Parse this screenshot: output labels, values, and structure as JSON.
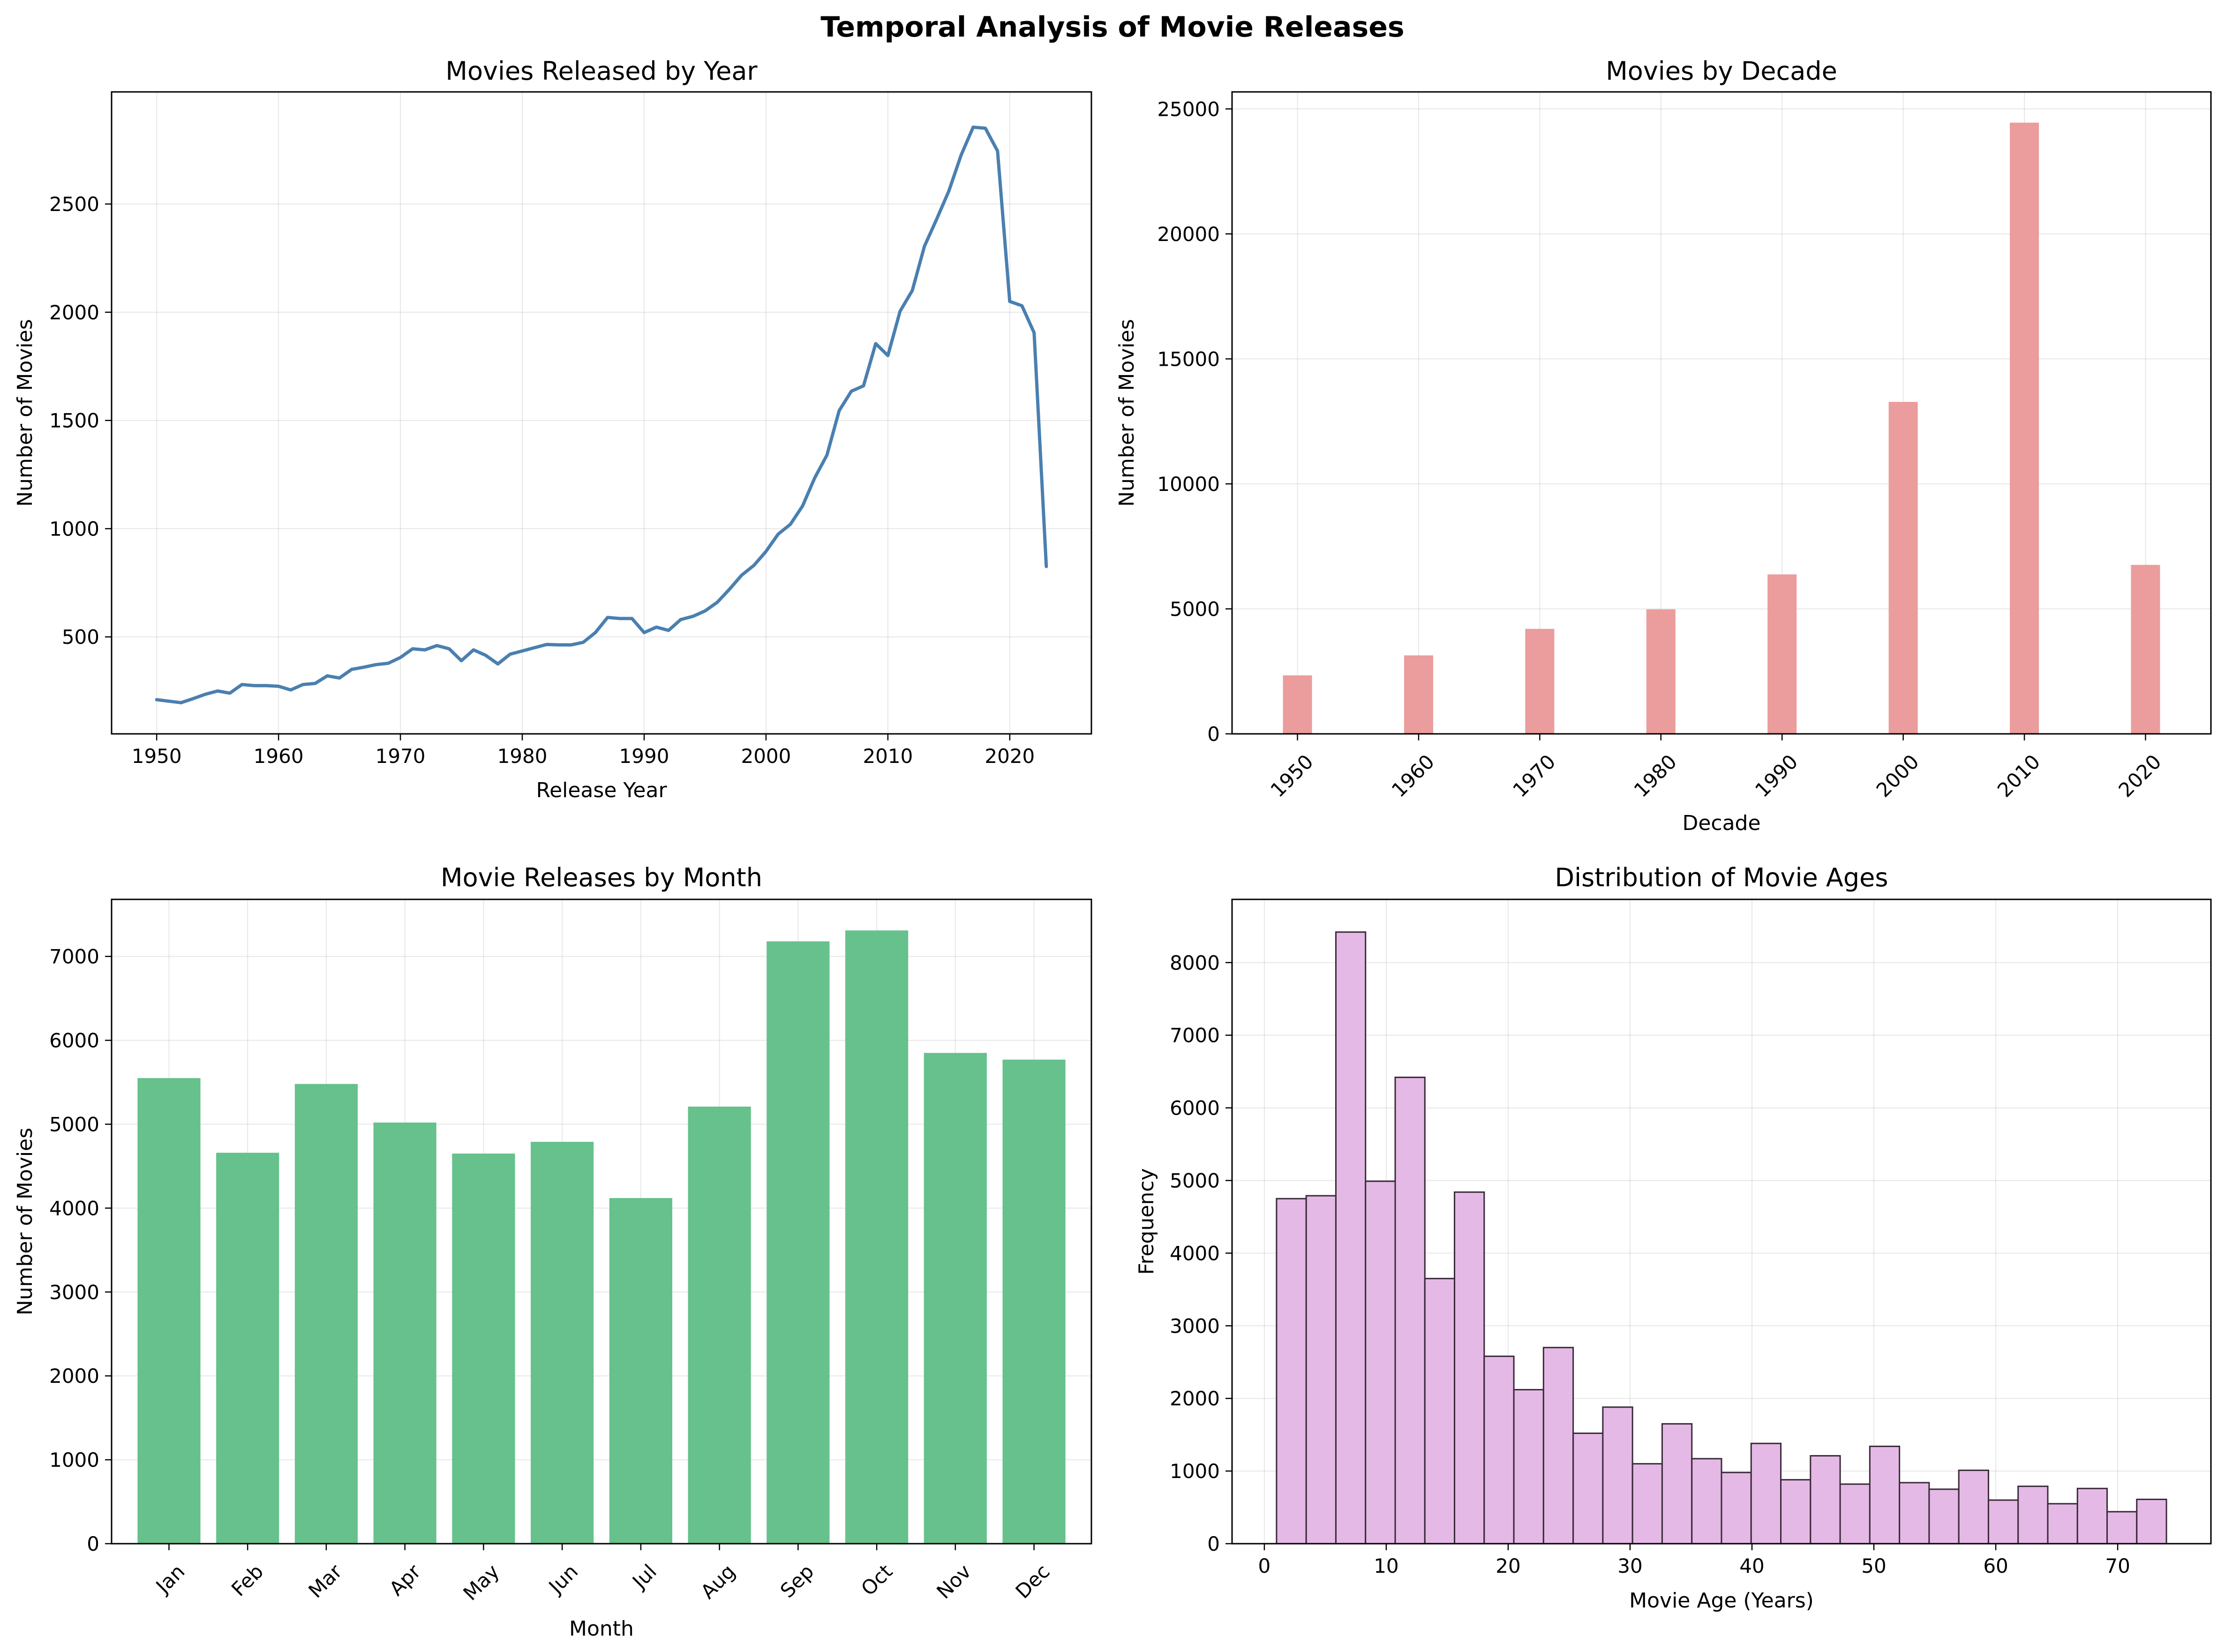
{
  "figure": {
    "title": "Temporal Analysis of Movie Releases"
  },
  "chart_data": [
    {
      "id": "by_year",
      "type": "line",
      "title": "Movies Released by Year",
      "xlabel": "Release Year",
      "ylabel": "Number of Movies",
      "xlim": [
        1946.3,
        2026.7
      ],
      "ylim": [
        52,
        3018
      ],
      "xticks": [
        1950,
        1960,
        1970,
        1980,
        1990,
        2000,
        2010,
        2020
      ],
      "yticks": [
        500,
        1000,
        1500,
        2000,
        2500
      ],
      "grid": true,
      "color": "#4a7fb0",
      "series": [
        {
          "x": [
            1950,
            1951,
            1952,
            1953,
            1954,
            1955,
            1956,
            1957,
            1958,
            1959,
            1960,
            1961,
            1962,
            1963,
            1964,
            1965,
            1966,
            1967,
            1968,
            1969,
            1970,
            1971,
            1972,
            1973,
            1974,
            1975,
            1976,
            1977,
            1978,
            1979,
            1980,
            1981,
            1982,
            1983,
            1984,
            1985,
            1986,
            1987,
            1988,
            1989,
            1990,
            1991,
            1992,
            1993,
            1994,
            1995,
            1996,
            1997,
            1998,
            1999,
            2000,
            2001,
            2002,
            2003,
            2004,
            2005,
            2006,
            2007,
            2008,
            2009,
            2010,
            2011,
            2012,
            2013,
            2014,
            2015,
            2016,
            2017,
            2018,
            2019,
            2020,
            2021,
            2022,
            2023
          ],
          "y": [
            210,
            203,
            196,
            215,
            235,
            250,
            240,
            280,
            275,
            275,
            272,
            255,
            280,
            285,
            320,
            310,
            350,
            360,
            372,
            378,
            405,
            445,
            440,
            460,
            445,
            390,
            440,
            415,
            375,
            420,
            435,
            450,
            465,
            463,
            463,
            475,
            520,
            590,
            585,
            585,
            520,
            545,
            530,
            580,
            595,
            620,
            660,
            720,
            785,
            830,
            895,
            975,
            1020,
            1105,
            1235,
            1340,
            1545,
            1635,
            1660,
            1855,
            1800,
            2005,
            2100,
            2305,
            2430,
            2560,
            2725,
            2855,
            2850,
            2745,
            2050,
            2030,
            1905,
            825
          ]
        }
      ]
    },
    {
      "id": "by_decade",
      "type": "bar",
      "title": "Movies by Decade",
      "xlabel": "Decade",
      "ylabel": "Number of Movies",
      "xlim": [
        1944.6,
        2025.4
      ],
      "ylim": [
        0,
        25680
      ],
      "categories": [
        1950,
        1960,
        1970,
        1980,
        1990,
        2000,
        2010,
        2020
      ],
      "values": [
        2340,
        3140,
        4200,
        4980,
        6380,
        13280,
        24450,
        6760
      ],
      "yticks": [
        0,
        5000,
        10000,
        15000,
        20000,
        25000
      ],
      "grid": true,
      "color": "#eb9c9c"
    },
    {
      "id": "by_month",
      "type": "bar",
      "title": "Movie Releases by Month",
      "xlabel": "Month",
      "ylabel": "Number of Movies",
      "ylim": [
        0,
        7680
      ],
      "categories": [
        "Jan",
        "Feb",
        "Mar",
        "Apr",
        "May",
        "Jun",
        "Jul",
        "Aug",
        "Sep",
        "Oct",
        "Nov",
        "Dec"
      ],
      "values": [
        5550,
        4660,
        5480,
        5020,
        4650,
        4790,
        4120,
        5210,
        7180,
        7310,
        5850,
        5770
      ],
      "yticks": [
        0,
        1000,
        2000,
        3000,
        4000,
        5000,
        6000,
        7000
      ],
      "grid": true,
      "color": "#66c18c"
    },
    {
      "id": "ages",
      "type": "histogram",
      "title": "Distribution of Movie Ages",
      "xlabel": "Movie Age (Years)",
      "ylabel": "Frequency",
      "xlim": [
        -2.65,
        77.65
      ],
      "ylim": [
        0,
        8870
      ],
      "xticks": [
        0,
        10,
        20,
        30,
        40,
        50,
        60,
        70
      ],
      "yticks": [
        0,
        1000,
        2000,
        3000,
        4000,
        5000,
        6000,
        7000,
        8000
      ],
      "grid": true,
      "color": "#e5b9e5",
      "edge_color": "#3a2a3a",
      "bin_start": 1,
      "bin_width": 2.4333,
      "counts": [
        4750,
        4790,
        8420,
        4990,
        6420,
        3650,
        4840,
        2580,
        2120,
        2700,
        1520,
        1880,
        1100,
        1650,
        1170,
        980,
        1380,
        880,
        1210,
        820,
        1340,
        840,
        750,
        1010,
        600,
        790,
        550,
        760,
        440,
        610
      ]
    }
  ]
}
